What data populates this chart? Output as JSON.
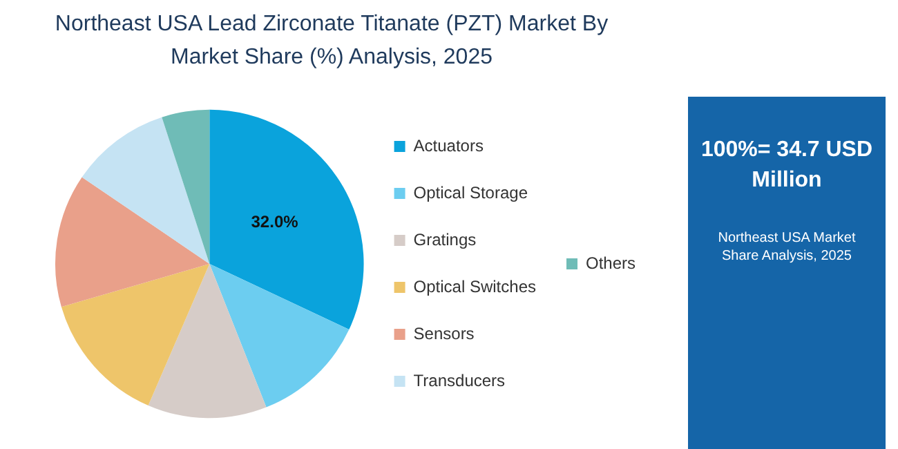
{
  "chart_data": {
    "type": "pie",
    "title": "Northeast USA Lead Zirconate Titanate (PZT) Market By Market Share (%) Analysis, 2025",
    "categories": [
      "Actuators",
      "Optical Storage",
      "Gratings",
      "Optical Switches",
      "Sensors",
      "Transducers",
      "Others"
    ],
    "values": [
      32,
      12,
      12.5,
      14,
      14,
      10.5,
      5
    ],
    "colors": [
      "#0aa3dc",
      "#6ccdf0",
      "#d6ccc8",
      "#eec56a",
      "#e9a08a",
      "#c5e3f3",
      "#6fbcb7"
    ],
    "value_labels": [
      "32.0%",
      null,
      null,
      null,
      null,
      null,
      null
    ],
    "legend": "right",
    "annotations": [
      "100%= 34.7 USD Million",
      "Northeast USA Market Share Analysis, 2025"
    ]
  }
}
